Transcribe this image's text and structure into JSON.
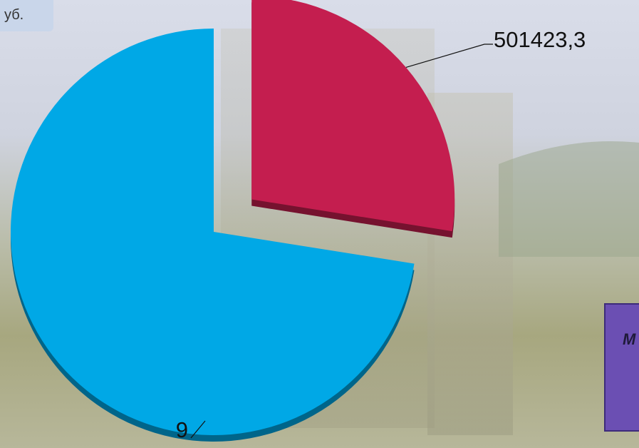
{
  "header": {
    "badge": "уб."
  },
  "chart_data": {
    "type": "pie",
    "values": [
      501423.3,
      1322000
    ],
    "value_labels": [
      "501423,3",
      null
    ],
    "colors": [
      "#c41e4f",
      "#00a8e6"
    ],
    "annotations": [
      "9"
    ]
  },
  "side_box": {
    "text": "М"
  }
}
